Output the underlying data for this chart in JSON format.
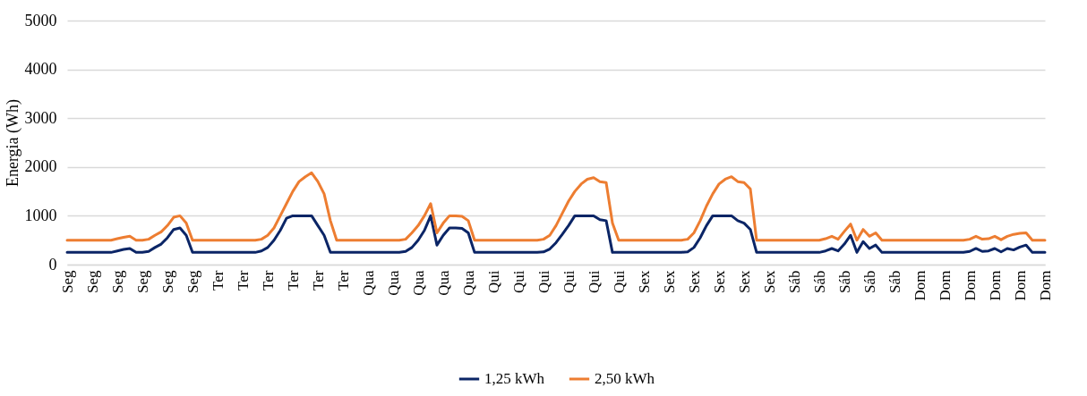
{
  "chart_data": {
    "type": "line",
    "ylabel": "Energia (Wh)",
    "ylim": [
      0,
      5000
    ],
    "yticks": [
      0,
      1000,
      2000,
      3000,
      4000,
      5000
    ],
    "grid": "y",
    "legend": "bottom",
    "categories": [
      "Seg",
      null,
      null,
      null,
      "Seg",
      null,
      null,
      null,
      "Seg",
      null,
      null,
      null,
      "Seg",
      null,
      null,
      null,
      "Seg",
      null,
      null,
      null,
      "Seg",
      null,
      null,
      null,
      "Ter",
      null,
      null,
      null,
      "Ter",
      null,
      null,
      null,
      "Ter",
      null,
      null,
      null,
      "Ter",
      null,
      null,
      null,
      "Ter",
      null,
      null,
      null,
      "Ter",
      null,
      null,
      null,
      "Qua",
      null,
      null,
      null,
      "Qua",
      null,
      null,
      null,
      "Qua",
      null,
      null,
      null,
      "Qua",
      null,
      null,
      null,
      "Qua",
      null,
      null,
      null,
      "Qui",
      null,
      null,
      null,
      "Qui",
      null,
      null,
      null,
      "Qui",
      null,
      null,
      null,
      "Qui",
      null,
      null,
      null,
      "Qui",
      null,
      null,
      null,
      "Qui",
      null,
      null,
      null,
      "Sex",
      null,
      null,
      null,
      "Sex",
      null,
      null,
      null,
      "Sex",
      null,
      null,
      null,
      "Sex",
      null,
      null,
      null,
      "Sex",
      null,
      null,
      null,
      "Sex",
      null,
      null,
      null,
      "Sáb",
      null,
      null,
      null,
      "Sáb",
      null,
      null,
      null,
      "Sáb",
      null,
      null,
      null,
      "Sáb",
      null,
      null,
      null,
      "Sáb",
      null,
      null,
      null,
      "Dom",
      null,
      null,
      null,
      "Dom",
      null,
      null,
      null,
      "Dom",
      null,
      null,
      null,
      "Dom",
      null,
      null,
      null,
      "Dom",
      null,
      null,
      null,
      "Dom"
    ],
    "series": [
      {
        "name": "1,25 kWh",
        "color": "#0b2566",
        "values": [
          250,
          250,
          250,
          250,
          250,
          250,
          250,
          250,
          280,
          310,
          330,
          250,
          250,
          270,
          350,
          420,
          550,
          720,
          750,
          600,
          250,
          250,
          250,
          250,
          250,
          250,
          250,
          250,
          250,
          250,
          250,
          280,
          350,
          500,
          700,
          950,
          1000,
          1000,
          1000,
          1000,
          800,
          600,
          250,
          250,
          250,
          250,
          250,
          250,
          250,
          250,
          250,
          250,
          250,
          250,
          270,
          350,
          500,
          700,
          1000,
          400,
          600,
          750,
          750,
          740,
          650,
          250,
          250,
          250,
          250,
          250,
          250,
          250,
          250,
          250,
          250,
          250,
          260,
          320,
          450,
          620,
          800,
          1000,
          1000,
          1000,
          1000,
          920,
          900,
          250,
          250,
          250,
          250,
          250,
          250,
          250,
          250,
          250,
          250,
          250,
          250,
          260,
          350,
          550,
          800,
          1000,
          1000,
          1000,
          1000,
          900,
          850,
          720,
          250,
          250,
          250,
          250,
          250,
          250,
          250,
          250,
          250,
          250,
          250,
          280,
          330,
          280,
          420,
          600,
          250,
          470,
          330,
          400,
          250,
          250,
          250,
          250,
          250,
          250,
          250,
          250,
          250,
          250,
          250,
          250,
          250,
          250,
          270,
          330,
          270,
          280,
          330,
          260,
          330,
          300,
          360,
          400,
          250,
          250,
          250
        ]
      },
      {
        "name": "2,50 kWh",
        "color": "#ed7d31",
        "values": [
          500,
          500,
          500,
          500,
          500,
          500,
          500,
          500,
          530,
          560,
          580,
          500,
          500,
          520,
          600,
          670,
          800,
          970,
          1000,
          850,
          500,
          500,
          500,
          500,
          500,
          500,
          500,
          500,
          500,
          500,
          500,
          520,
          600,
          750,
          1000,
          1250,
          1500,
          1700,
          1800,
          1880,
          1700,
          1450,
          900,
          500,
          500,
          500,
          500,
          500,
          500,
          500,
          500,
          500,
          500,
          500,
          520,
          650,
          800,
          1000,
          1250,
          650,
          850,
          1000,
          1000,
          990,
          900,
          500,
          500,
          500,
          500,
          500,
          500,
          500,
          500,
          500,
          500,
          500,
          520,
          600,
          800,
          1050,
          1300,
          1500,
          1650,
          1750,
          1780,
          1700,
          1680,
          850,
          500,
          500,
          500,
          500,
          500,
          500,
          500,
          500,
          500,
          500,
          500,
          520,
          650,
          900,
          1200,
          1450,
          1650,
          1750,
          1800,
          1700,
          1680,
          1550,
          500,
          500,
          500,
          500,
          500,
          500,
          500,
          500,
          500,
          500,
          500,
          530,
          580,
          520,
          680,
          830,
          500,
          720,
          580,
          650,
          500,
          500,
          500,
          500,
          500,
          500,
          500,
          500,
          500,
          500,
          500,
          500,
          500,
          500,
          520,
          580,
          520,
          530,
          580,
          510,
          580,
          620,
          640,
          650,
          500,
          500,
          500
        ]
      }
    ]
  }
}
